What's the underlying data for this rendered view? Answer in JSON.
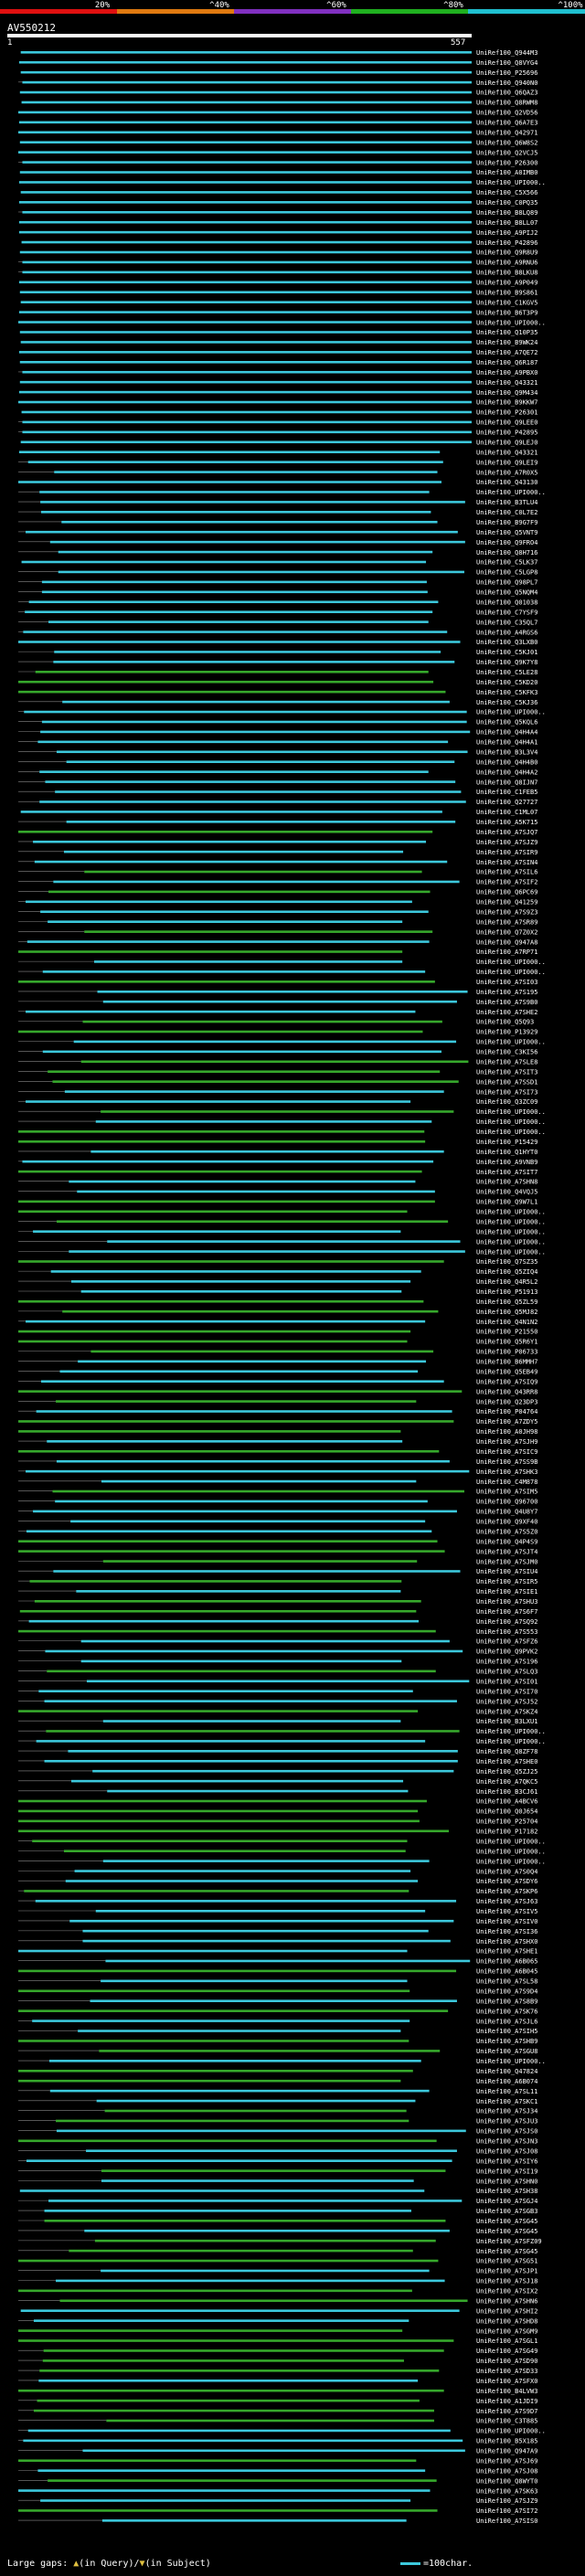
{
  "header": {
    "scale_labels": [
      "20%",
      "^40%",
      "^60%",
      "^80%",
      "^100%"
    ],
    "scale_colors": [
      "#e01010",
      "#e07a10",
      "#8030c0",
      "#20b020",
      "#20c0d0"
    ],
    "query_id": "AV550212",
    "query_start": "1",
    "query_end": "557"
  },
  "footer": {
    "large_gaps_label": "Large gaps:",
    "in_query_label": "(in Query)/",
    "in_subject_label": "(in Subject)",
    "legend_label": "=100char."
  },
  "colors": {
    "cyan": "#3cc8dc",
    "green": "#36a82c",
    "connector": "#888888",
    "background": "#000000"
  },
  "chart_data": {
    "type": "alignment",
    "x_axis": {
      "start": 1,
      "end": 557
    },
    "hits": [
      "UniRef100_Q944M3",
      "UniRef100_Q8VYG4",
      "UniRef100_P25696",
      "UniRef100_Q940N0",
      "UniRef100_Q6QAZ3",
      "UniRef100_Q8RWM8",
      "UniRef100_Q2VD56",
      "UniRef100_Q6A7E3",
      "UniRef100_Q42971",
      "UniRef100_Q6W8S2",
      "UniRef100_Q2VCJ5",
      "UniRef100_P26300",
      "UniRef100_A0IMB0",
      "UniRef100_UPI000..",
      "UniRef100_C5X566",
      "UniRef100_C0PQ35",
      "UniRef100_B8LQ89",
      "UniRef100_B8LL07",
      "UniRef100_A9PIJ2",
      "UniRef100_P42896",
      "UniRef100_Q9R8U9",
      "UniRef100_A9RNU6",
      "UniRef100_B8LKU8",
      "UniRef100_A9P049",
      "UniRef100_B9S861",
      "UniRef100_C1KGV5",
      "UniRef100_B6T3P9",
      "UniRef100_UPI000..",
      "UniRef100_Q10P35",
      "UniRef100_B9WK24",
      "UniRef100_A7QE72",
      "UniRef100_Q6R187",
      "UniRef100_A9PBX0",
      "UniRef100_Q43321",
      "UniRef100_Q9M434",
      "UniRef100_B9KKW7",
      "UniRef100_P26301",
      "UniRef100_Q9LEE0",
      "UniRef100_P42895",
      "UniRef100_Q9LEJ0",
      "UniRef100_Q43321",
      "UniRef100_Q9LEI9",
      "UniRef100_A7R0X5",
      "UniRef100_Q43130",
      "UniRef100_UPI000..",
      "UniRef100_B3TLU4",
      "UniRef100_C0L7E2",
      "UniRef100_B9G7F9",
      "UniRef100_Q5VNT9",
      "UniRef100_Q9FRO4",
      "UniRef100_Q8H716",
      "UniRef100_C5LK37",
      "UniRef100_C5LGP8",
      "UniRef100_Q98PL7",
      "UniRef100_Q5NQM4",
      "UniRef100_Q01038",
      "UniRef100_C7YSF9",
      "UniRef100_C35QL7",
      "UniRef100_A4RGS6",
      "UniRef100_Q3LXB0",
      "UniRef100_C5KJ01",
      "UniRef100_Q9K7Y8",
      "UniRef100_C5LE28",
      "UniRef100_C5KD20",
      "UniRef100_C5KFK3",
      "UniRef100_C5KJ36",
      "UniRef100_UPI000..",
      "UniRef100_Q5KQL6",
      "UniRef100_Q4H4A4",
      "UniRef100_Q4H4A1",
      "UniRef100_B3L3V4",
      "UniRef100_Q4H4B0",
      "UniRef100_Q4H4A2",
      "UniRef100_Q8IJN7",
      "UniRef100_C1FEB5",
      "UniRef100_Q27727",
      "UniRef100_C1ML07",
      "UniRef100_A5K715",
      "UniRef100_A7SJQ7",
      "UniRef100_A7SJZ9",
      "UniRef100_A7SIR9",
      "UniRef100_A7SIN4",
      "UniRef100_A7SIL6",
      "UniRef100_A7SIF2",
      "UniRef100_Q6PC69",
      "UniRef100_Q41259",
      "UniRef100_A7S9Z3",
      "UniRef100_A7SR89",
      "UniRef100_Q7Z0X2",
      "UniRef100_Q947A8",
      "UniRef100_A7RP71",
      "UniRef100_UPI000..",
      "UniRef100_UPI000..",
      "UniRef100_A7SI03",
      "UniRef100_A7S195",
      "UniRef100_A7S9B0",
      "UniRef100_A7SHE2",
      "UniRef100_Q5Q93",
      "UniRef100_P13929",
      "UniRef100_UPI000..",
      "UniRef100_C3KI56",
      "UniRef100_A7SLE8",
      "UniRef100_A7SIT3",
      "UniRef100_A7SSD1",
      "UniRef100_A7SI73",
      "UniRef100_Q3ZC09",
      "UniRef100_UPI000..",
      "UniRef100_UPI000..",
      "UniRef100_UPI000..",
      "UniRef100_P15429",
      "UniRef100_Q1HYT0",
      "UniRef100_A9VNB9",
      "UniRef100_A7SIT7",
      "UniRef100_A7SHN8",
      "UniRef100_Q4VQJ5",
      "UniRef100_Q9W7L1",
      "UniRef100_UPI000..",
      "UniRef100_UPI000..",
      "UniRef100_UPI000..",
      "UniRef100_UPI000..",
      "UniRef100_UPI000..",
      "UniRef100_Q7SZ35",
      "UniRef100_Q5ZIQ4",
      "UniRef100_Q4R5L2",
      "UniRef100_P51913",
      "UniRef100_Q5ZL59",
      "UniRef100_Q5MJ82",
      "UniRef100_Q4N1N2",
      "UniRef100_P21550",
      "UniRef100_Q5R6Y1",
      "UniRef100_P06733",
      "UniRef100_B6MMH7",
      "UniRef100_Q5EB49",
      "UniRef100_A7SIQ9",
      "UniRef100_Q43RR8",
      "UniRef100_Q23DP3",
      "UniRef100_P04764",
      "UniRef100_A7ZDY5",
      "UniRef100_A0JH98",
      "UniRef100_A7SJH9",
      "UniRef100_A7SIC9",
      "UniRef100_A7SS9B",
      "UniRef100_A7SHK3",
      "UniRef100_C4M878",
      "UniRef100_A7SIM5",
      "UniRef100_Q96700",
      "UniRef100_Q4U8Y7",
      "UniRef100_Q9XF40",
      "UniRef100_A7S5Z0",
      "UniRef100_Q4P4S9",
      "UniRef100_A7SJT4",
      "UniRef100_A7SJM0",
      "UniRef100_A7SIU4",
      "UniRef100_A7SIR5",
      "UniRef100_A7SIE1",
      "UniRef100_A7SHU3",
      "UniRef100_A7S6F7",
      "UniRef100_A7SQ92",
      "UniRef100_A7S553",
      "UniRef100_A7SFZ6",
      "UniRef100_Q9PVK2",
      "UniRef100_A7S196",
      "UniRef100_A7SLQ3",
      "UniRef100_A7SI01",
      "UniRef100_A7SI70",
      "UniRef100_A7SJ52",
      "UniRef100_A7SKZ4",
      "UniRef100_B3LXU1",
      "UniRef100_UPI000..",
      "UniRef100_UPI000..",
      "UniRef100_Q8ZF78",
      "UniRef100_A7SHE0",
      "UniRef100_Q5ZJ25",
      "UniRef100_A7QKC5",
      "UniRef100_B3CJ61",
      "UniRef100_A4BCV6",
      "UniRef100_Q0J654",
      "UniRef100_P25704",
      "UniRef100_P17182",
      "UniRef100_UPI000..",
      "UniRef100_UPI000..",
      "UniRef100_UPI000..",
      "UniRef100_A7S0Q4",
      "UniRef100_A7SDY6",
      "UniRef100_A7SKP6",
      "UniRef100_A7SJ63",
      "UniRef100_A7SIV5",
      "UniRef100_A7SIV0",
      "UniRef100_A7SI36",
      "UniRef100_A7SHX0",
      "UniRef100_A7SHE1",
      "UniRef100_A6B065",
      "UniRef100_A6B045",
      "UniRef100_A7SL58",
      "UniRef100_A7S9D4",
      "UniRef100_A7S8B9",
      "UniRef100_A7SK76",
      "UniRef100_A7SJL6",
      "UniRef100_A7SIH5",
      "UniRef100_A7SHB9",
      "UniRef100_A7SGU8",
      "UniRef100_UPI000..",
      "UniRef100_Q47824",
      "UniRef100_A6B074",
      "UniRef100_A7SL11",
      "UniRef100_A7SKC1",
      "UniRef100_A7SJ34",
      "UniRef100_A7SJU3",
      "UniRef100_A7SJS0",
      "UniRef100_A7SJN3",
      "UniRef100_A7SJ08",
      "UniRef100_A7SIY6",
      "UniRef100_A7SI19",
      "UniRef100_A7SHN0",
      "UniRef100_A7SH38",
      "UniRef100_A7SGJ4",
      "UniRef100_A7SGB3",
      "UniRef100_A7SG45",
      "UniRef100_A7SG45",
      "UniRef100_A7SFZ09",
      "UniRef100_A7SG45",
      "UniRef100_A7SG51",
      "UniRef100_A7SJP1",
      "UniRef100_A7SJ18",
      "UniRef100_A7SIX2",
      "UniRef100_A7SHN6",
      "UniRef100_A7SHI2",
      "UniRef100_A7SHD8",
      "UniRef100_A7SGM9",
      "UniRef100_A7SGL1",
      "UniRef100_A7SG49",
      "UniRef100_A7SD90",
      "UniRef100_A7SD33",
      "UniRef100_A7SFX0",
      "UniRef100_B4LVW3",
      "UniRef100_A1JDI9",
      "UniRef100_A7S9D7",
      "UniRef100_C3T885",
      "UniRef100_UPI000..",
      "UniRef100_B5X185",
      "UniRef100_Q947A9",
      "UniRef100_A7SJ69",
      "UniRef100_A7SJ08",
      "UniRef100_Q8WYT0",
      "UniRef100_A7SK63",
      "UniRef100_A7SJZ9",
      "UniRef100_A7SI72",
      "UniRef100_A7SIS0"
    ]
  }
}
